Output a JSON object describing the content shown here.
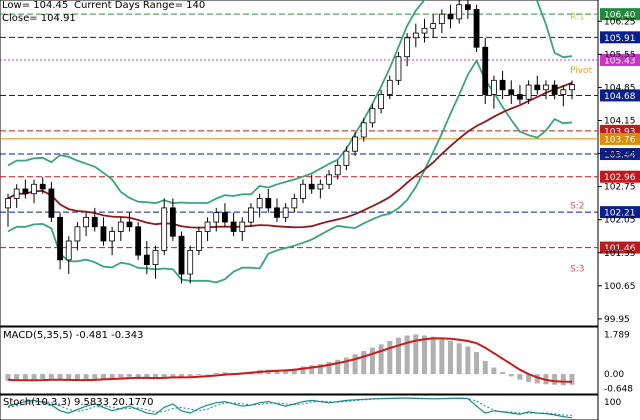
{
  "header": {
    "low": "Low= 104.45",
    "range": "Current Days Range= 140",
    "close": "Close= 104.91"
  },
  "chart_data": [
    {
      "type": "candlestick",
      "ylim": [
        99.8,
        106.7
      ],
      "y_ticks": [
        "106.25",
        "105.55",
        "104.85",
        "104.15",
        "103.45",
        "102.75",
        "102.05",
        "101.35",
        "100.65",
        "99.95"
      ],
      "price_levels": [
        {
          "value": "106.40",
          "color": "#1e8a3a",
          "style": "dash",
          "line": "#2d8f3f"
        },
        {
          "value": "105.91",
          "color": "#0a1f8f",
          "style": "dash",
          "line": "#0a1f8f"
        },
        {
          "value": "105.43",
          "color": "#cc33cc",
          "style": "dot",
          "line": "#cc33cc"
        },
        {
          "value": "104.68",
          "color": "#0a1f8f",
          "style": "dash",
          "line": "#0a1f8f"
        },
        {
          "value": "103.93",
          "color": "#c0181c",
          "style": "dash",
          "line": "#c0181c"
        },
        {
          "value": "103.76",
          "color": "#e08a00",
          "style": "solid",
          "line": "#e08a00"
        },
        {
          "value": "103.44",
          "color": "#0a1f8f",
          "style": "dash",
          "line": "#0a1f8f"
        },
        {
          "value": "102.96",
          "color": "#c0181c",
          "style": "dash",
          "line": "#c0181c"
        },
        {
          "value": "102.21",
          "color": "#0a1f8f",
          "style": "dash",
          "line": "#0a1f8f"
        },
        {
          "value": "101.46",
          "color": "#c0181c",
          "style": "dash",
          "line": "#c0181c"
        }
      ],
      "pivot_labels": [
        {
          "text": "R:1",
          "value": 106.35,
          "color": "#e0c040"
        },
        {
          "text": "Pivot",
          "value": 105.22,
          "color": "#e0a030"
        },
        {
          "text": "S:2",
          "value": 102.35,
          "color": "#e05050"
        },
        {
          "text": "S:3",
          "value": 101.02,
          "color": "#e05050"
        }
      ],
      "candles": [
        [
          102.3,
          102.6,
          101.9,
          102.5
        ],
        [
          102.5,
          102.8,
          102.3,
          102.7
        ],
        [
          102.7,
          102.9,
          102.5,
          102.6
        ],
        [
          102.6,
          102.9,
          102.4,
          102.8
        ],
        [
          102.8,
          102.95,
          102.6,
          102.7
        ],
        [
          102.7,
          102.85,
          102.0,
          102.1
        ],
        [
          102.1,
          102.2,
          101.0,
          101.2
        ],
        [
          101.2,
          101.7,
          100.9,
          101.6
        ],
        [
          101.6,
          102.0,
          101.4,
          101.9
        ],
        [
          101.9,
          102.2,
          101.7,
          102.1
        ],
        [
          102.1,
          102.3,
          101.8,
          101.9
        ],
        [
          101.9,
          102.1,
          101.5,
          101.6
        ],
        [
          101.6,
          101.9,
          101.3,
          101.8
        ],
        [
          101.8,
          102.1,
          101.6,
          102.0
        ],
        [
          102.0,
          102.2,
          101.8,
          101.9
        ],
        [
          101.9,
          102.0,
          101.2,
          101.3
        ],
        [
          101.3,
          101.6,
          100.9,
          101.1
        ],
        [
          101.1,
          101.5,
          100.8,
          101.4
        ],
        [
          101.4,
          102.5,
          101.3,
          102.3
        ],
        [
          102.3,
          102.5,
          101.6,
          101.7
        ],
        [
          101.7,
          101.8,
          100.7,
          100.9
        ],
        [
          100.9,
          101.5,
          100.7,
          101.4
        ],
        [
          101.4,
          101.9,
          101.3,
          101.8
        ],
        [
          101.8,
          102.1,
          101.6,
          102.0
        ],
        [
          102.0,
          102.3,
          101.8,
          102.2
        ],
        [
          102.2,
          102.4,
          101.9,
          102.0
        ],
        [
          102.0,
          102.2,
          101.7,
          101.8
        ],
        [
          101.8,
          102.1,
          101.6,
          102.0
        ],
        [
          102.0,
          102.4,
          101.9,
          102.3
        ],
        [
          102.3,
          102.6,
          102.1,
          102.5
        ],
        [
          102.5,
          102.7,
          102.2,
          102.3
        ],
        [
          102.3,
          102.5,
          102.0,
          102.1
        ],
        [
          102.1,
          102.4,
          102.0,
          102.3
        ],
        [
          102.3,
          102.6,
          102.2,
          102.5
        ],
        [
          102.5,
          102.9,
          102.4,
          102.8
        ],
        [
          102.8,
          103.0,
          102.6,
          102.7
        ],
        [
          102.7,
          102.9,
          102.5,
          102.8
        ],
        [
          102.8,
          103.1,
          102.7,
          103.0
        ],
        [
          103.0,
          103.3,
          102.9,
          103.2
        ],
        [
          103.2,
          103.6,
          103.1,
          103.5
        ],
        [
          103.5,
          103.9,
          103.4,
          103.8
        ],
        [
          103.8,
          104.2,
          103.7,
          104.1
        ],
        [
          104.1,
          104.5,
          104.0,
          104.4
        ],
        [
          104.4,
          104.8,
          104.3,
          104.7
        ],
        [
          104.7,
          105.1,
          104.6,
          105.0
        ],
        [
          105.0,
          105.6,
          104.9,
          105.5
        ],
        [
          105.5,
          106.0,
          105.3,
          105.9
        ],
        [
          105.9,
          106.2,
          105.7,
          106.0
        ],
        [
          106.0,
          106.3,
          105.8,
          106.1
        ],
        [
          106.1,
          106.4,
          105.9,
          106.2
        ],
        [
          106.2,
          106.5,
          106.0,
          106.4
        ],
        [
          106.4,
          106.6,
          106.1,
          106.3
        ],
        [
          106.3,
          106.7,
          106.2,
          106.6
        ],
        [
          106.6,
          106.7,
          106.3,
          106.5
        ],
        [
          106.5,
          106.6,
          105.6,
          105.7
        ],
        [
          105.7,
          105.9,
          104.5,
          104.7
        ],
        [
          104.7,
          105.1,
          104.4,
          105.0
        ],
        [
          105.0,
          105.2,
          104.6,
          104.8
        ],
        [
          104.8,
          105.0,
          104.5,
          104.7
        ],
        [
          104.7,
          104.9,
          104.5,
          104.6
        ],
        [
          104.6,
          105.0,
          104.5,
          104.9
        ],
        [
          104.9,
          105.1,
          104.7,
          104.8
        ],
        [
          104.8,
          105.0,
          104.6,
          104.9
        ],
        [
          104.9,
          105.0,
          104.6,
          104.7
        ],
        [
          104.7,
          104.9,
          104.45,
          104.8
        ],
        [
          104.8,
          105.0,
          104.6,
          104.91
        ]
      ]
    },
    {
      "type": "area",
      "title": "MACD(5,35,5) -0.481 -0.343",
      "ylim": [
        -0.9,
        2.0
      ],
      "y_ticks": [
        "1.789",
        "0.00",
        "-0.648"
      ],
      "histogram": [
        -0.3,
        -0.3,
        -0.28,
        -0.25,
        -0.22,
        -0.2,
        -0.25,
        -0.3,
        -0.28,
        -0.25,
        -0.22,
        -0.2,
        -0.18,
        -0.15,
        -0.12,
        -0.14,
        -0.18,
        -0.2,
        -0.15,
        -0.1,
        -0.15,
        -0.12,
        -0.05,
        0.0,
        0.05,
        0.08,
        0.05,
        0.08,
        0.12,
        0.18,
        0.2,
        0.18,
        0.2,
        0.25,
        0.35,
        0.4,
        0.45,
        0.55,
        0.65,
        0.75,
        0.9,
        1.05,
        1.2,
        1.35,
        1.5,
        1.65,
        1.75,
        1.8,
        1.75,
        1.7,
        1.6,
        1.5,
        1.4,
        1.25,
        1.0,
        0.6,
        0.3,
        0.1,
        -0.1,
        -0.25,
        -0.35,
        -0.42,
        -0.46,
        -0.48,
        -0.5,
        -0.48
      ],
      "signal": [
        -0.25,
        -0.27,
        -0.28,
        -0.28,
        -0.27,
        -0.25,
        -0.25,
        -0.26,
        -0.27,
        -0.27,
        -0.26,
        -0.24,
        -0.22,
        -0.2,
        -0.18,
        -0.17,
        -0.17,
        -0.18,
        -0.17,
        -0.15,
        -0.15,
        -0.14,
        -0.12,
        -0.09,
        -0.06,
        -0.02,
        0.0,
        0.03,
        0.06,
        0.1,
        0.13,
        0.15,
        0.17,
        0.2,
        0.25,
        0.3,
        0.35,
        0.42,
        0.5,
        0.58,
        0.68,
        0.8,
        0.92,
        1.05,
        1.18,
        1.3,
        1.42,
        1.52,
        1.58,
        1.62,
        1.62,
        1.6,
        1.56,
        1.5,
        1.4,
        1.2,
        0.95,
        0.7,
        0.45,
        0.2,
        0.0,
        -0.15,
        -0.26,
        -0.32,
        -0.34,
        -0.343
      ]
    },
    {
      "type": "line",
      "title": "Stoch(10,3,3) 9.5833 20.1770",
      "ylim": [
        0,
        100
      ],
      "y_ticks": [
        "100"
      ],
      "k": [
        60,
        70,
        80,
        85,
        78,
        65,
        40,
        30,
        45,
        60,
        70,
        55,
        40,
        50,
        60,
        45,
        30,
        25,
        55,
        70,
        40,
        30,
        50,
        65,
        75,
        80,
        70,
        60,
        65,
        75,
        80,
        70,
        60,
        70,
        80,
        85,
        80,
        75,
        80,
        85,
        88,
        90,
        92,
        93,
        94,
        95,
        95,
        94,
        93,
        92,
        93,
        94,
        95,
        93,
        60,
        30,
        40,
        35,
        30,
        25,
        35,
        30,
        28,
        22,
        15,
        9.5833
      ],
      "d": [
        55,
        62,
        70,
        78,
        80,
        76,
        61,
        45,
        38,
        45,
        58,
        62,
        55,
        48,
        50,
        52,
        45,
        33,
        37,
        50,
        55,
        47,
        40,
        48,
        63,
        73,
        75,
        70,
        65,
        67,
        73,
        75,
        70,
        67,
        70,
        78,
        82,
        80,
        78,
        80,
        84,
        88,
        90,
        92,
        93,
        94,
        95,
        95,
        94,
        93,
        93,
        93,
        94,
        94,
        82,
        61,
        43,
        35,
        35,
        30,
        30,
        30,
        31,
        27,
        22,
        20.177
      ]
    }
  ]
}
